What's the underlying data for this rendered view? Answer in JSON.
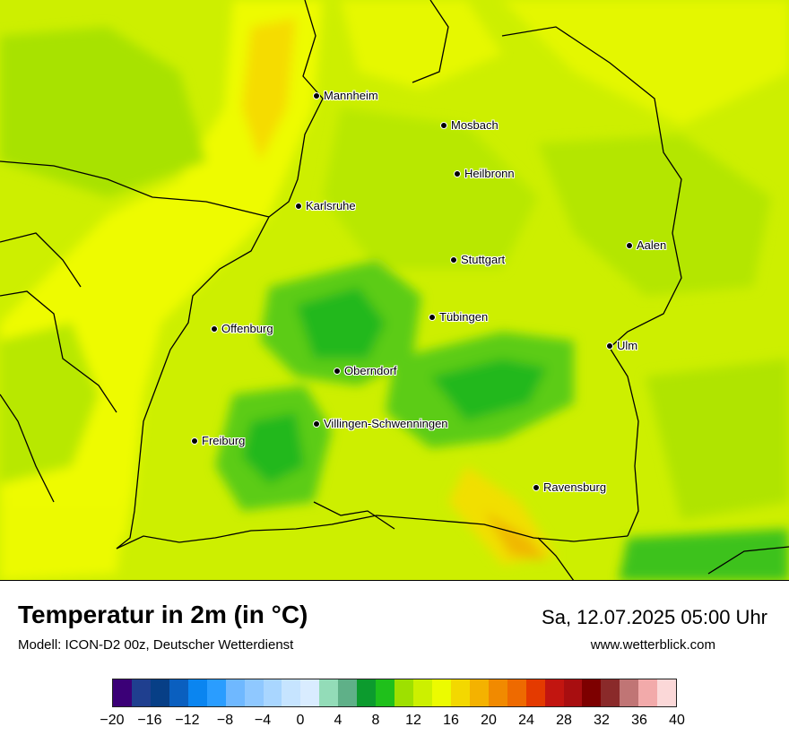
{
  "map": {
    "cities": [
      {
        "name": "Mannheim"
      },
      {
        "name": "Mosbach"
      },
      {
        "name": "Heilbronn"
      },
      {
        "name": "Karlsruhe"
      },
      {
        "name": "Aalen"
      },
      {
        "name": "Stuttgart"
      },
      {
        "name": "Tübingen"
      },
      {
        "name": "Offenburg"
      },
      {
        "name": "Ulm"
      },
      {
        "name": "Oberndorf"
      },
      {
        "name": "Villingen-Schwenningen"
      },
      {
        "name": "Freiburg"
      },
      {
        "name": "Ravensburg"
      }
    ]
  },
  "footer": {
    "title": "Temperatur in 2m (in °C)",
    "model": "Modell: ICON-D2 00z, Deutscher Wetterdienst",
    "datetime": "Sa, 12.07.2025 05:00 Uhr",
    "website": "www.wetterblick.com"
  },
  "legend": {
    "min": -20,
    "max": 40,
    "tick_labels": [
      "−20",
      "−16",
      "−12",
      "−8",
      "−4",
      "0",
      "4",
      "8",
      "12",
      "16",
      "20",
      "24",
      "28",
      "32",
      "36",
      "40"
    ],
    "colors": [
      "#3b0077",
      "#1f3f8f",
      "#073f86",
      "#0a5fbf",
      "#0a85f0",
      "#2a9dff",
      "#6fb8ff",
      "#8fc8ff",
      "#a9d6ff",
      "#c6e4ff",
      "#d9ecff",
      "#93dcb8",
      "#5fb088",
      "#0c9b2e",
      "#1fc01b",
      "#9ee000",
      "#ccf000",
      "#ecfb00",
      "#f3d800",
      "#f4b200",
      "#f18a00",
      "#ee6a00",
      "#e43a00",
      "#c21510",
      "#a80e10",
      "#7d0000",
      "#8a2a2a",
      "#c07575",
      "#f2aaaa",
      "#fbd8d8"
    ]
  }
}
